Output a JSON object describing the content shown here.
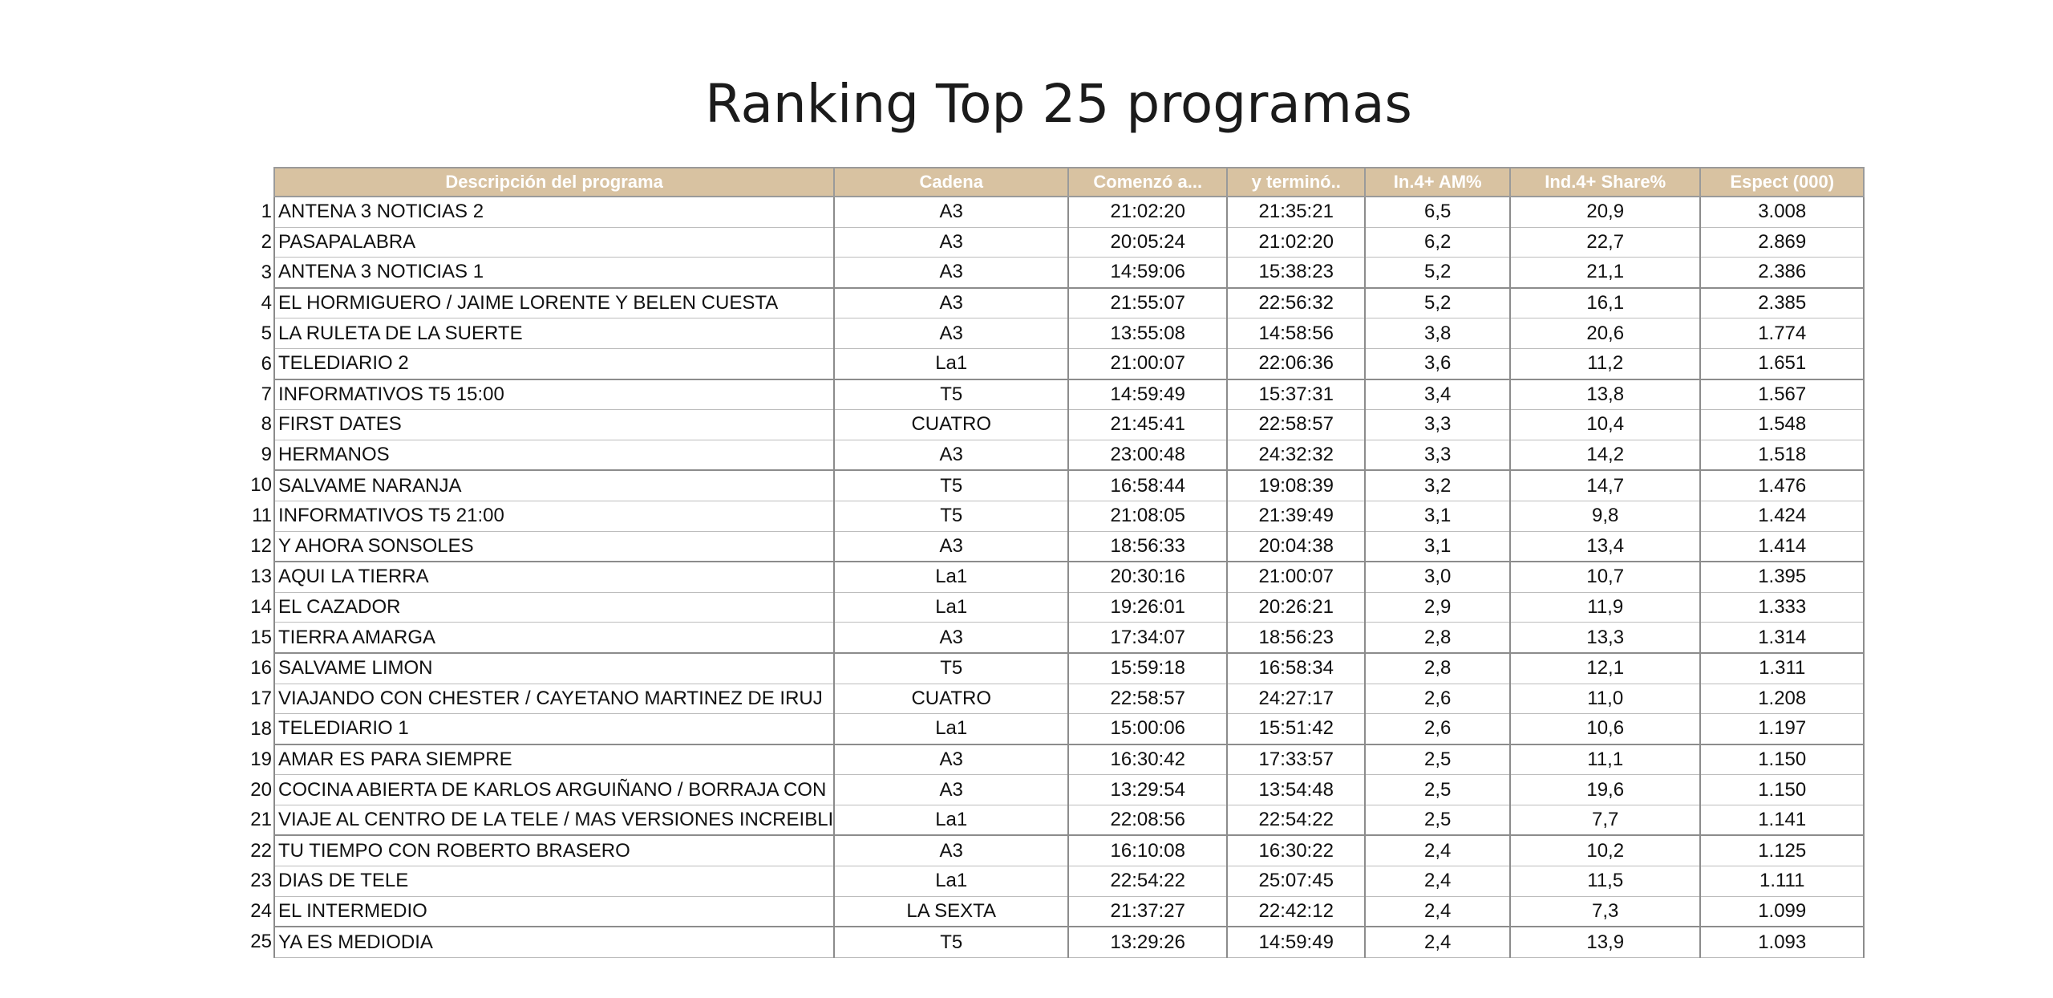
{
  "title": "Ranking Top 25 programas",
  "table": {
    "headers": {
      "descripcion": "Descripción del programa",
      "cadena": "Cadena",
      "comenzo": "Comenzó a...",
      "termino": "y terminó..",
      "am": "In.4+ AM%",
      "share": "Ind.4+ Share%",
      "espect": "Espect (000)"
    },
    "rows": [
      {
        "rank": "1",
        "descripcion": "ANTENA 3 NOTICIAS 2",
        "cadena": "A3",
        "comenzo": "21:02:20",
        "termino": "21:35:21",
        "am": "6,5",
        "share": "20,9",
        "espect": "3.008"
      },
      {
        "rank": "2",
        "descripcion": "PASAPALABRA",
        "cadena": "A3",
        "comenzo": "20:05:24",
        "termino": "21:02:20",
        "am": "6,2",
        "share": "22,7",
        "espect": "2.869"
      },
      {
        "rank": "3",
        "descripcion": "ANTENA 3 NOTICIAS 1",
        "cadena": "A3",
        "comenzo": "14:59:06",
        "termino": "15:38:23",
        "am": "5,2",
        "share": "21,1",
        "espect": "2.386"
      },
      {
        "rank": "4",
        "descripcion": "EL HORMIGUERO / JAIME LORENTE Y BELEN CUESTA",
        "cadena": "A3",
        "comenzo": "21:55:07",
        "termino": "22:56:32",
        "am": "5,2",
        "share": "16,1",
        "espect": "2.385"
      },
      {
        "rank": "5",
        "descripcion": "LA RULETA DE LA SUERTE",
        "cadena": "A3",
        "comenzo": "13:55:08",
        "termino": "14:58:56",
        "am": "3,8",
        "share": "20,6",
        "espect": "1.774"
      },
      {
        "rank": "6",
        "descripcion": "TELEDIARIO 2",
        "cadena": "La1",
        "comenzo": "21:00:07",
        "termino": "22:06:36",
        "am": "3,6",
        "share": "11,2",
        "espect": "1.651"
      },
      {
        "rank": "7",
        "descripcion": "INFORMATIVOS T5 15:00",
        "cadena": "T5",
        "comenzo": "14:59:49",
        "termino": "15:37:31",
        "am": "3,4",
        "share": "13,8",
        "espect": "1.567"
      },
      {
        "rank": "8",
        "descripcion": "FIRST DATES",
        "cadena": "CUATRO",
        "comenzo": "21:45:41",
        "termino": "22:58:57",
        "am": "3,3",
        "share": "10,4",
        "espect": "1.548"
      },
      {
        "rank": "9",
        "descripcion": "HERMANOS",
        "cadena": "A3",
        "comenzo": "23:00:48",
        "termino": "24:32:32",
        "am": "3,3",
        "share": "14,2",
        "espect": "1.518"
      },
      {
        "rank": "10",
        "descripcion": "SALVAME NARANJA",
        "cadena": "T5",
        "comenzo": "16:58:44",
        "termino": "19:08:39",
        "am": "3,2",
        "share": "14,7",
        "espect": "1.476"
      },
      {
        "rank": "11",
        "descripcion": "INFORMATIVOS T5 21:00",
        "cadena": "T5",
        "comenzo": "21:08:05",
        "termino": "21:39:49",
        "am": "3,1",
        "share": "9,8",
        "espect": "1.424"
      },
      {
        "rank": "12",
        "descripcion": "Y AHORA SONSOLES",
        "cadena": "A3",
        "comenzo": "18:56:33",
        "termino": "20:04:38",
        "am": "3,1",
        "share": "13,4",
        "espect": "1.414"
      },
      {
        "rank": "13",
        "descripcion": "AQUI LA TIERRA",
        "cadena": "La1",
        "comenzo": "20:30:16",
        "termino": "21:00:07",
        "am": "3,0",
        "share": "10,7",
        "espect": "1.395"
      },
      {
        "rank": "14",
        "descripcion": "EL CAZADOR",
        "cadena": "La1",
        "comenzo": "19:26:01",
        "termino": "20:26:21",
        "am": "2,9",
        "share": "11,9",
        "espect": "1.333"
      },
      {
        "rank": "15",
        "descripcion": "TIERRA AMARGA",
        "cadena": "A3",
        "comenzo": "17:34:07",
        "termino": "18:56:23",
        "am": "2,8",
        "share": "13,3",
        "espect": "1.314"
      },
      {
        "rank": "16",
        "descripcion": "SALVAME LIMON",
        "cadena": "T5",
        "comenzo": "15:59:18",
        "termino": "16:58:34",
        "am": "2,8",
        "share": "12,1",
        "espect": "1.311"
      },
      {
        "rank": "17",
        "descripcion": "VIAJANDO CON CHESTER / CAYETANO MARTINEZ DE IRUJ",
        "cadena": "CUATRO",
        "comenzo": "22:58:57",
        "termino": "24:27:17",
        "am": "2,6",
        "share": "11,0",
        "espect": "1.208"
      },
      {
        "rank": "18",
        "descripcion": "TELEDIARIO 1",
        "cadena": "La1",
        "comenzo": "15:00:06",
        "termino": "15:51:42",
        "am": "2,6",
        "share": "10,6",
        "espect": "1.197"
      },
      {
        "rank": "19",
        "descripcion": "AMAR ES PARA SIEMPRE",
        "cadena": "A3",
        "comenzo": "16:30:42",
        "termino": "17:33:57",
        "am": "2,5",
        "share": "11,1",
        "espect": "1.150"
      },
      {
        "rank": "20",
        "descripcion": "COCINA ABIERTA DE KARLOS ARGUIÑANO / BORRAJA CON",
        "cadena": "A3",
        "comenzo": "13:29:54",
        "termino": "13:54:48",
        "am": "2,5",
        "share": "19,6",
        "espect": "1.150"
      },
      {
        "rank": "21",
        "descripcion": "VIAJE AL CENTRO DE LA TELE / MAS VERSIONES INCREIBLI",
        "cadena": "La1",
        "comenzo": "22:08:56",
        "termino": "22:54:22",
        "am": "2,5",
        "share": "7,7",
        "espect": "1.141"
      },
      {
        "rank": "22",
        "descripcion": "TU TIEMPO CON ROBERTO BRASERO",
        "cadena": "A3",
        "comenzo": "16:10:08",
        "termino": "16:30:22",
        "am": "2,4",
        "share": "10,2",
        "espect": "1.125"
      },
      {
        "rank": "23",
        "descripcion": "DIAS DE TELE",
        "cadena": "La1",
        "comenzo": "22:54:22",
        "termino": "25:07:45",
        "am": "2,4",
        "share": "11,5",
        "espect": "1.111"
      },
      {
        "rank": "24",
        "descripcion": "EL INTERMEDIO",
        "cadena": "LA SEXTA",
        "comenzo": "21:37:27",
        "termino": "22:42:12",
        "am": "2,4",
        "share": "7,3",
        "espect": "1.099"
      },
      {
        "rank": "25",
        "descripcion": "YA ES MEDIODIA",
        "cadena": "T5",
        "comenzo": "13:29:26",
        "termino": "14:59:49",
        "am": "2,4",
        "share": "13,9",
        "espect": "1.093"
      }
    ]
  }
}
